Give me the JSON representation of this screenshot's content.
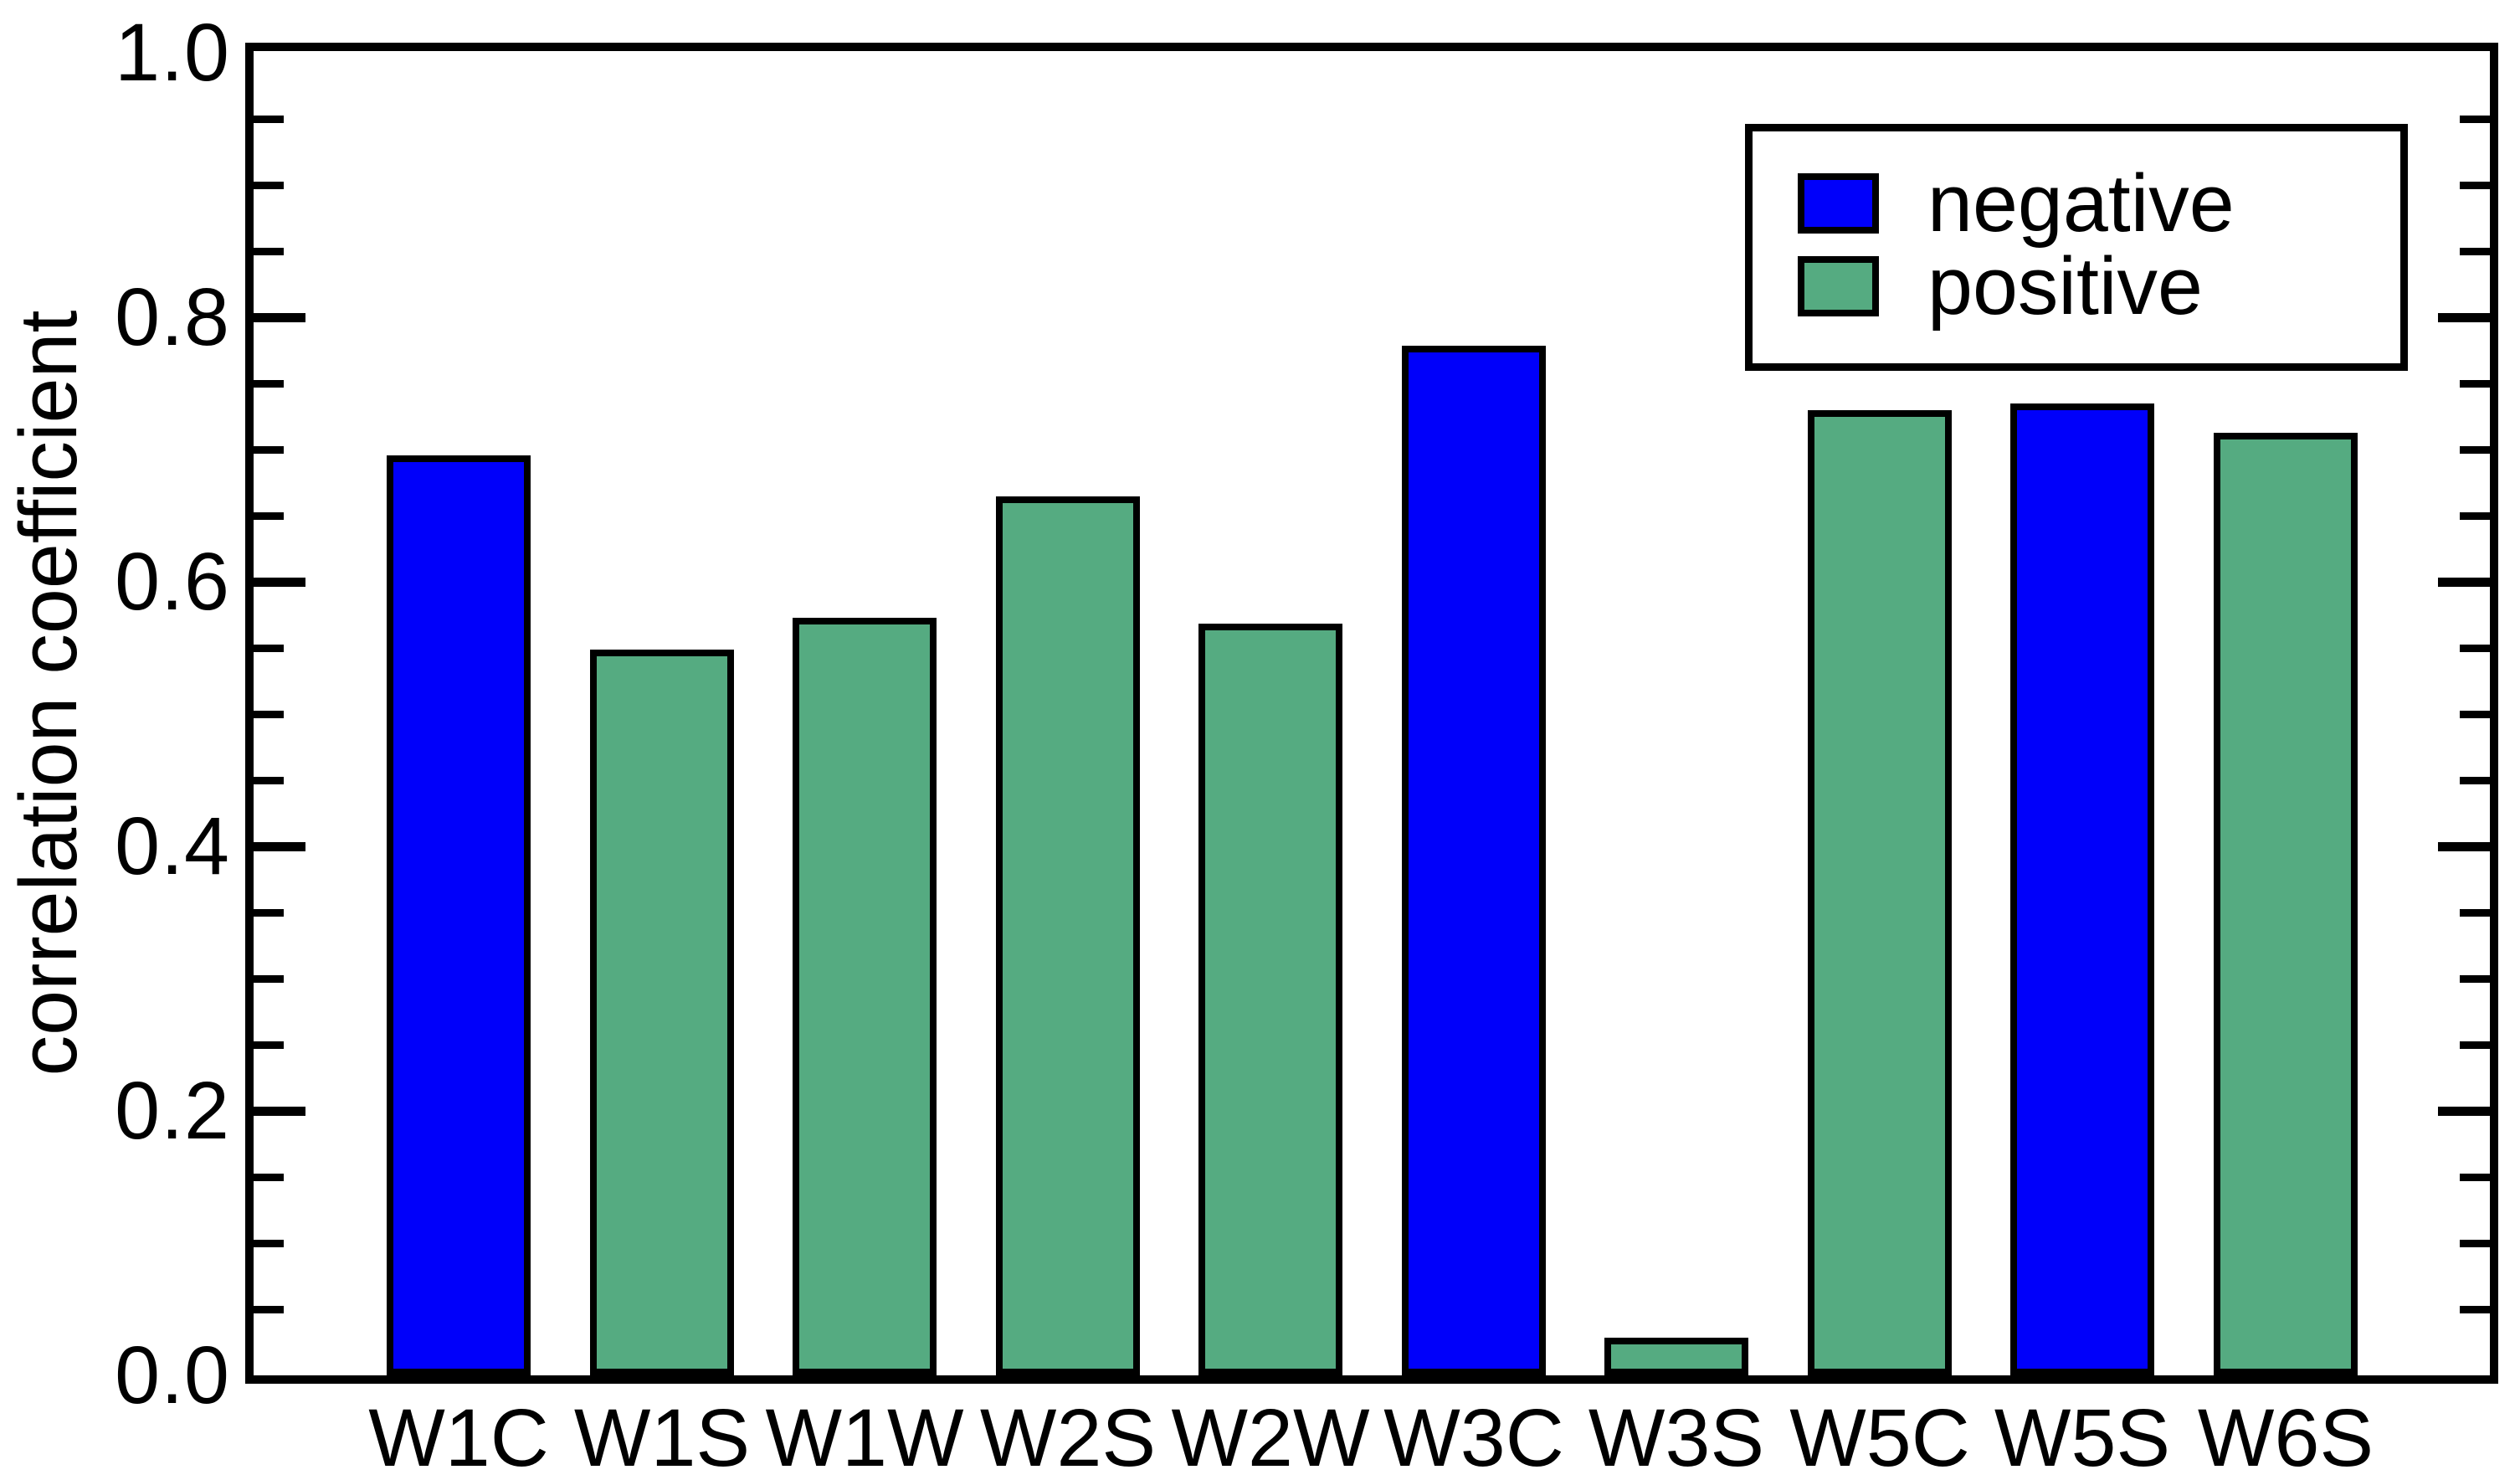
{
  "chart_data": {
    "type": "bar",
    "title": "",
    "xlabel": "",
    "ylabel": "correlation coefficient",
    "categories": [
      "W1C",
      "W1S",
      "W1W",
      "W2S",
      "W2W",
      "W3C",
      "W3S",
      "W5C",
      "W5S",
      "W6S"
    ],
    "values": [
      0.693,
      0.546,
      0.57,
      0.662,
      0.566,
      0.776,
      0.026,
      0.727,
      0.732,
      0.71
    ],
    "bar_classes": [
      "negative",
      "positive",
      "positive",
      "positive",
      "positive",
      "negative",
      "positive",
      "positive",
      "negative",
      "positive"
    ],
    "ylim": [
      0.0,
      1.0
    ],
    "ytick_major": [
      0.0,
      0.2,
      0.4,
      0.6,
      0.8,
      1.0
    ],
    "ytick_labels": [
      "0.0",
      "0.2",
      "0.4",
      "0.6",
      "0.8",
      "1.0"
    ],
    "ytick_minor_step": 0.05,
    "grid": false,
    "legend": {
      "position": "upper right",
      "entries": [
        {
          "label": "negative",
          "color": "#0000FA"
        },
        {
          "label": "positive",
          "color": "#55AB81"
        }
      ]
    },
    "colors": {
      "negative": "#0000FA",
      "positive": "#55AB81",
      "axis": "#000000",
      "background": "#FFFFFF"
    }
  }
}
